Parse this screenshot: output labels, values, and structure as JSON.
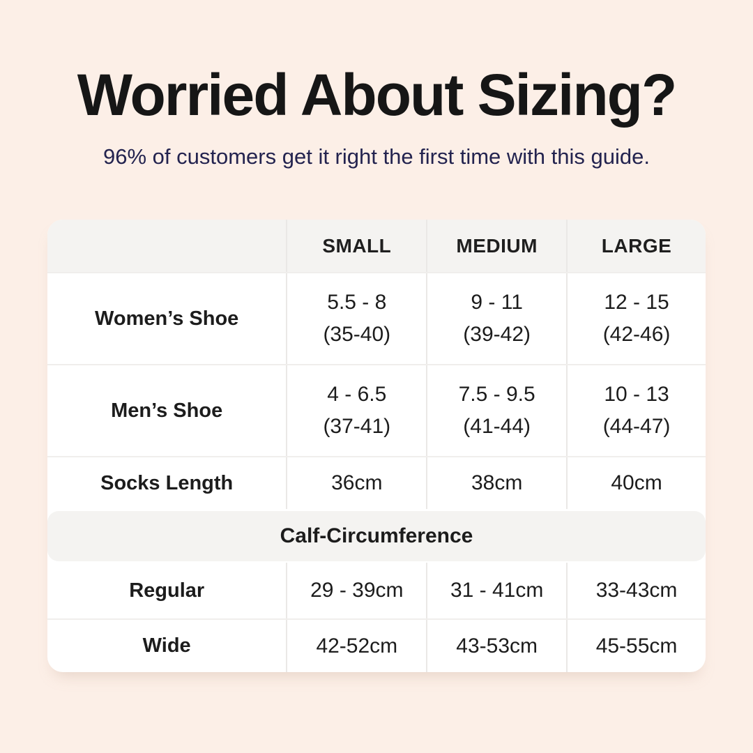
{
  "colors": {
    "page_background": "#fcefe7",
    "card_background": "#ffffff",
    "header_band_background": "#f4f3f1",
    "title_text": "#161616",
    "subtitle_text": "#23234f",
    "table_text": "#1c1c1c"
  },
  "chart_data": {
    "type": "table",
    "title": "Worried About Sizing?",
    "subtitle": "96% of customers get it right the first time with this guide.",
    "column_headers": [
      "",
      "SMALL",
      "MEDIUM",
      "LARGE"
    ],
    "shoe_rows": [
      {
        "label": "Women’s Shoe",
        "small": "5.5 - 8",
        "small_eu": "(35-40)",
        "medium": "9 - 11",
        "medium_eu": "(39-42)",
        "large": "12 - 15",
        "large_eu": "(42-46)"
      },
      {
        "label": "Men’s Shoe",
        "small": "4 - 6.5",
        "small_eu": "(37-41)",
        "medium": "7.5 - 9.5",
        "medium_eu": "(41-44)",
        "large": "10 - 13",
        "large_eu": "(44-47)"
      }
    ],
    "socks_row": {
      "label": "Socks Length",
      "small": "36cm",
      "medium": "38cm",
      "large": "40cm"
    },
    "calf_section_title": "Calf-Circumference",
    "calf_rows": [
      {
        "label": "Regular",
        "small": "29 - 39cm",
        "medium": "31 - 41cm",
        "large": "33-43cm"
      },
      {
        "label": "Wide",
        "small": "42-52cm",
        "medium": "43-53cm",
        "large": "45-55cm"
      }
    ]
  }
}
